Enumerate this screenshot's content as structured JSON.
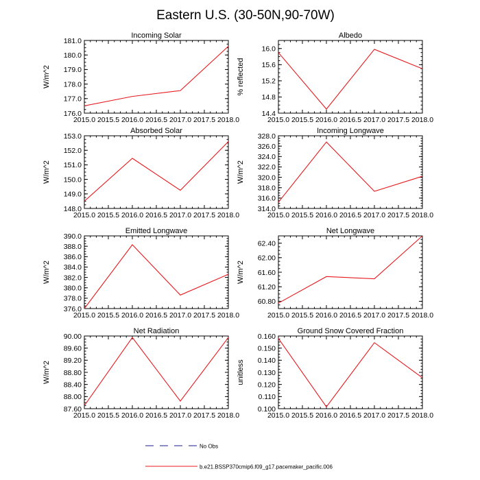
{
  "figure": {
    "title": "Eastern U.S. (30-50N,90-70W)"
  },
  "legend": {
    "items": [
      {
        "label": "No Obs",
        "style": "dashed",
        "color": "#1a1a8c"
      },
      {
        "label": "b.e21.BSSP370cmip6.f09_g17.pacemaker_pacific.006",
        "style": "solid",
        "color": "#e8191d"
      }
    ]
  },
  "chart_data": [
    {
      "type": "line",
      "title": "Incoming Solar",
      "ylabel": "W/m^2",
      "xlabel": "",
      "x": [
        2015,
        2016,
        2017,
        2018
      ],
      "xlim": [
        2015,
        2018
      ],
      "xticks": [
        "2015.0",
        "2015.5",
        "2016.0",
        "2016.5",
        "2017.0",
        "2017.5",
        "2018.0"
      ],
      "ylim": [
        176.0,
        181.0
      ],
      "yticks": [
        "176.0",
        "177.0",
        "178.0",
        "179.0",
        "180.0",
        "181.0"
      ],
      "series": [
        {
          "color": "#e8191d",
          "values": [
            176.5,
            177.15,
            177.55,
            180.6
          ]
        }
      ]
    },
    {
      "type": "line",
      "title": "Albedo",
      "ylabel": "% reflected",
      "xlabel": "",
      "x": [
        2015,
        2016,
        2017,
        2018
      ],
      "xlim": [
        2015,
        2018
      ],
      "xticks": [
        "2015.0",
        "2015.5",
        "2016.0",
        "2016.5",
        "2017.0",
        "2017.5",
        "2018.0"
      ],
      "ylim": [
        14.4,
        16.2
      ],
      "yticks": [
        "14.4",
        "14.8",
        "15.2",
        "15.6",
        "16.0"
      ],
      "series": [
        {
          "color": "#e8191d",
          "values": [
            15.9,
            14.5,
            15.98,
            15.5
          ]
        }
      ]
    },
    {
      "type": "line",
      "title": "Absorbed Solar",
      "ylabel": "W/m^2",
      "xlabel": "",
      "x": [
        2015,
        2016,
        2017,
        2018
      ],
      "xlim": [
        2015,
        2018
      ],
      "xticks": [
        "2015.0",
        "2015.5",
        "2016.0",
        "2016.5",
        "2017.0",
        "2017.5",
        "2018.0"
      ],
      "ylim": [
        148.0,
        153.0
      ],
      "yticks": [
        "148.0",
        "149.0",
        "150.0",
        "151.0",
        "152.0",
        "153.0"
      ],
      "series": [
        {
          "color": "#e8191d",
          "values": [
            148.5,
            151.45,
            149.25,
            152.6
          ]
        }
      ]
    },
    {
      "type": "line",
      "title": "Incoming Longwave",
      "ylabel": "W/m^2",
      "xlabel": "",
      "x": [
        2015,
        2016,
        2017,
        2018
      ],
      "xlim": [
        2015,
        2018
      ],
      "xticks": [
        "2015.0",
        "2015.5",
        "2016.0",
        "2016.5",
        "2017.0",
        "2017.5",
        "2018.0"
      ],
      "ylim": [
        314.0,
        328.0
      ],
      "yticks": [
        "314.0",
        "316.0",
        "318.0",
        "320.0",
        "322.0",
        "324.0",
        "326.0",
        "328.0"
      ],
      "series": [
        {
          "color": "#e8191d",
          "values": [
            315.2,
            326.8,
            317.3,
            320.2
          ]
        }
      ]
    },
    {
      "type": "line",
      "title": "Emitted Longwave",
      "ylabel": "W/m^2",
      "xlabel": "",
      "x": [
        2015,
        2016,
        2017,
        2018
      ],
      "xlim": [
        2015,
        2018
      ],
      "xticks": [
        "2015.0",
        "2015.5",
        "2016.0",
        "2016.5",
        "2017.0",
        "2017.5",
        "2018.0"
      ],
      "ylim": [
        376.0,
        390.0
      ],
      "yticks": [
        "376.0",
        "378.0",
        "380.0",
        "382.0",
        "384.0",
        "386.0",
        "388.0",
        "390.0"
      ],
      "series": [
        {
          "color": "#e8191d",
          "values": [
            376.0,
            388.3,
            378.6,
            382.6
          ]
        }
      ]
    },
    {
      "type": "line",
      "title": "Net Longwave",
      "ylabel": "W/m^2",
      "xlabel": "",
      "x": [
        2015,
        2016,
        2017,
        2018
      ],
      "xlim": [
        2015,
        2018
      ],
      "xticks": [
        "2015.0",
        "2015.5",
        "2016.0",
        "2016.5",
        "2017.0",
        "2017.5",
        "2018.0"
      ],
      "ylim": [
        60.6,
        62.6
      ],
      "yticks": [
        "60.80",
        "61.20",
        "61.60",
        "62.00",
        "62.40"
      ],
      "series": [
        {
          "color": "#e8191d",
          "values": [
            60.75,
            61.48,
            61.42,
            62.6
          ]
        }
      ]
    },
    {
      "type": "line",
      "title": "Net Radiation",
      "ylabel": "W/m^2",
      "xlabel": "",
      "x": [
        2015,
        2016,
        2017,
        2018
      ],
      "xlim": [
        2015,
        2018
      ],
      "xticks": [
        "2015.0",
        "2015.5",
        "2016.0",
        "2016.5",
        "2017.0",
        "2017.5",
        "2018.0"
      ],
      "ylim": [
        87.6,
        90.0
      ],
      "yticks": [
        "87.60",
        "88.00",
        "88.40",
        "88.80",
        "89.20",
        "89.60",
        "90.00"
      ],
      "series": [
        {
          "color": "#e8191d",
          "values": [
            87.7,
            89.95,
            87.85,
            89.95
          ]
        }
      ]
    },
    {
      "type": "line",
      "title": "Ground Snow Covered Fraction",
      "ylabel": "unitless",
      "xlabel": "",
      "x": [
        2015,
        2016,
        2017,
        2018
      ],
      "xlim": [
        2015,
        2018
      ],
      "xticks": [
        "2015.0",
        "2015.5",
        "2016.0",
        "2016.5",
        "2017.0",
        "2017.5",
        "2018.0"
      ],
      "ylim": [
        0.1,
        0.16
      ],
      "yticks": [
        "0.100",
        "0.110",
        "0.120",
        "0.130",
        "0.140",
        "0.150",
        "0.160"
      ],
      "series": [
        {
          "color": "#e8191d",
          "values": [
            0.158,
            0.1015,
            0.1545,
            0.1255
          ]
        }
      ]
    }
  ]
}
